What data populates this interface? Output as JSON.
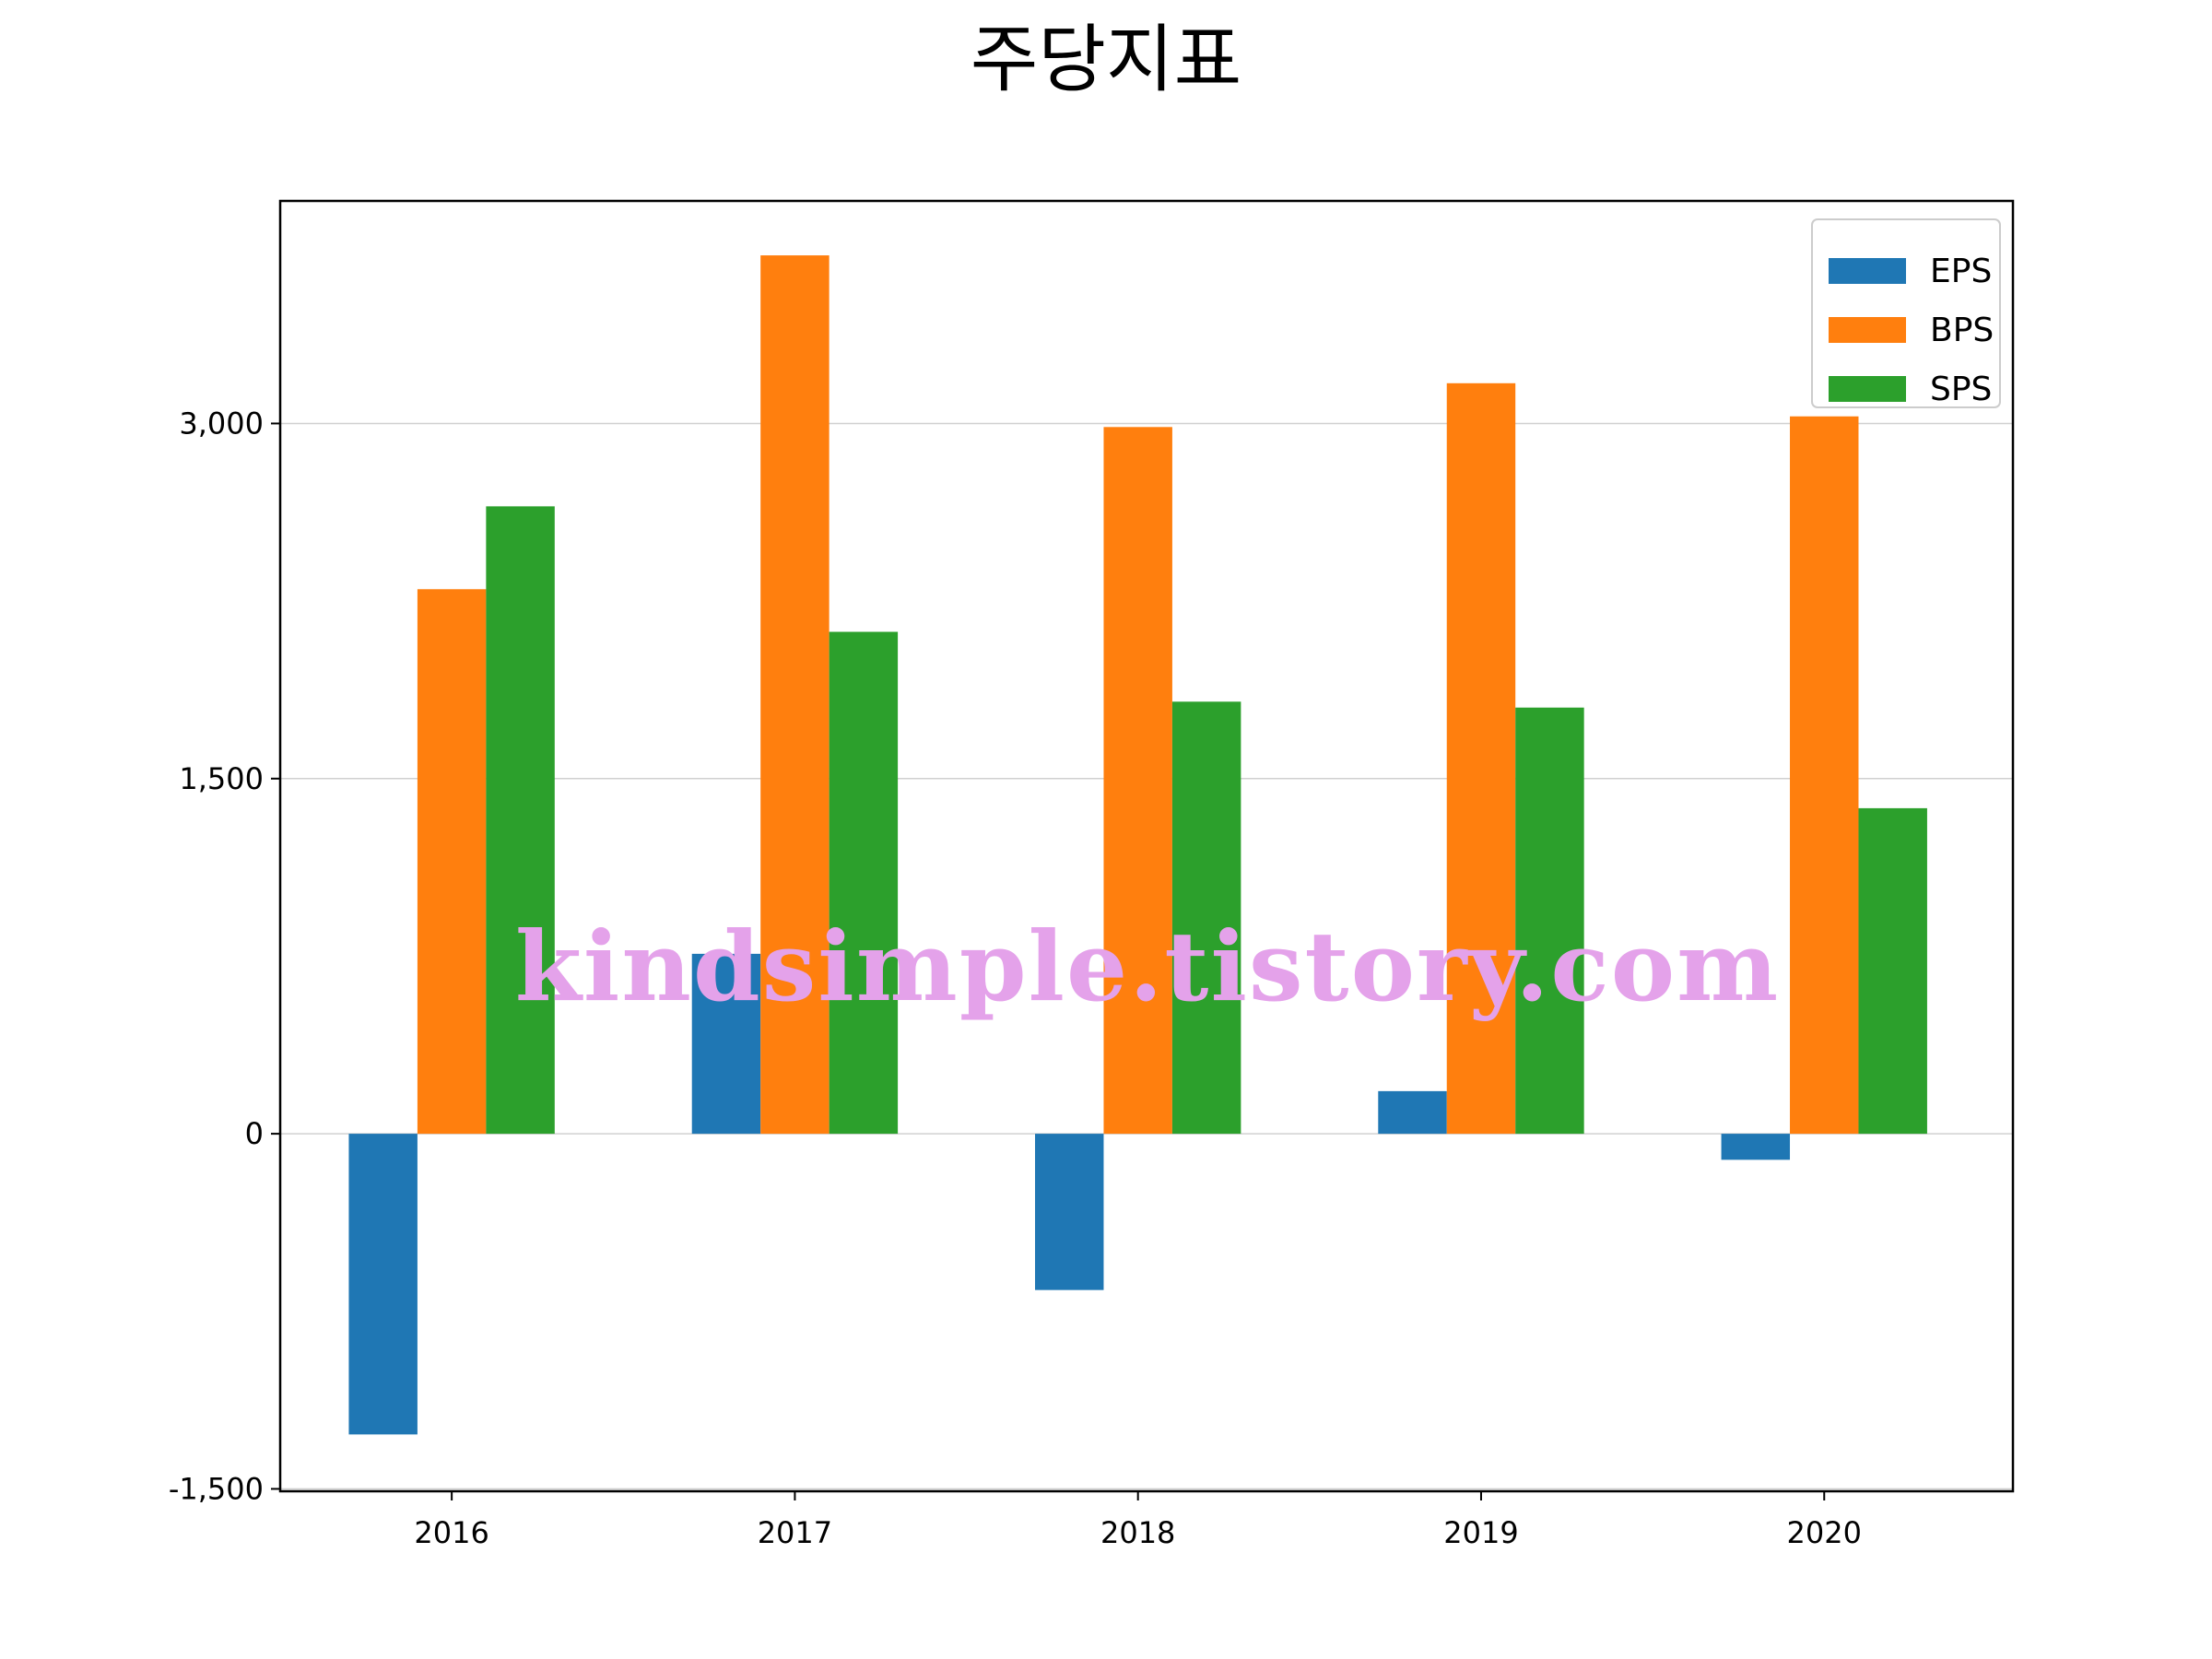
{
  "chart_data": {
    "type": "bar",
    "title": "주당지표",
    "xlabel": "",
    "ylabel": "",
    "categories": [
      "2016",
      "2017",
      "2018",
      "2019",
      "2020"
    ],
    "series": [
      {
        "name": "EPS",
        "color": "#1f77b4",
        "values": [
          -1270,
          760,
          -660,
          180,
          -110
        ]
      },
      {
        "name": "BPS",
        "color": "#ff7f0e",
        "values": [
          2300,
          3710,
          2985,
          3170,
          3030
        ]
      },
      {
        "name": "SPS",
        "color": "#2ca02c",
        "values": [
          2650,
          2120,
          1825,
          1800,
          1375
        ]
      }
    ],
    "ylim": [
      -1510,
      3940
    ],
    "yticks": [
      -1500,
      0,
      1500,
      3000
    ],
    "ytick_labels": [
      "-1,500",
      "0",
      "1,500",
      "3,000"
    ],
    "grid": "y",
    "legend": "top-right"
  },
  "watermark": "kindsimple.tistory.com"
}
